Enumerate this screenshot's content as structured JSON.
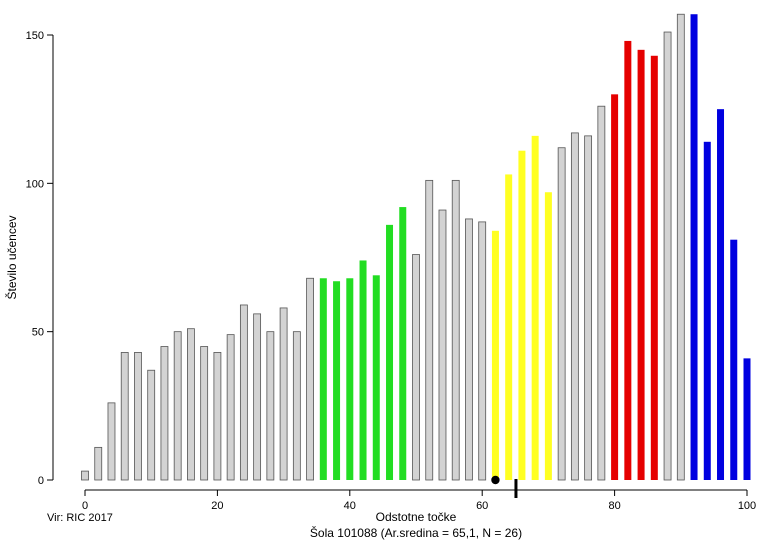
{
  "chart_data": {
    "type": "bar",
    "xlabel": "Odstotne točke",
    "ylabel": "Število učencev",
    "source": "Vir: RIC 2017",
    "caption": "Šola 101088 (Ar.sredina = 65,1, N = 26)",
    "xlim": [
      0,
      100
    ],
    "ylim": [
      0,
      157
    ],
    "x_ticks": [
      0,
      20,
      40,
      60,
      80,
      100
    ],
    "y_ticks": [
      0,
      50,
      100,
      150
    ],
    "x": [
      0,
      2,
      4,
      6,
      8,
      10,
      12,
      14,
      16,
      18,
      20,
      22,
      24,
      26,
      28,
      30,
      32,
      34,
      36,
      38,
      40,
      42,
      44,
      46,
      48,
      50,
      52,
      54,
      56,
      58,
      60,
      62,
      64,
      66,
      68,
      70,
      72,
      74,
      76,
      78,
      80,
      82,
      84,
      86,
      88,
      90,
      92,
      94,
      96,
      98,
      100
    ],
    "values": [
      3,
      11,
      26,
      43,
      43,
      37,
      45,
      50,
      51,
      45,
      43,
      49,
      59,
      56,
      50,
      58,
      50,
      68,
      68,
      67,
      68,
      74,
      69,
      86,
      92,
      76,
      101,
      91,
      101,
      88,
      87,
      84,
      103,
      111,
      116,
      97,
      112,
      117,
      116,
      126,
      130,
      148,
      145,
      143,
      151,
      157,
      157,
      114,
      125,
      81,
      41
    ],
    "bar_groups": [
      "gray",
      "gray",
      "gray",
      "gray",
      "gray",
      "gray",
      "gray",
      "gray",
      "gray",
      "gray",
      "gray",
      "gray",
      "gray",
      "gray",
      "gray",
      "gray",
      "gray",
      "gray",
      "green",
      "green",
      "green",
      "green",
      "green",
      "green",
      "green",
      "gray",
      "gray",
      "gray",
      "gray",
      "gray",
      "gray",
      "yellow",
      "yellow",
      "yellow",
      "yellow",
      "yellow",
      "gray",
      "gray",
      "gray",
      "gray",
      "red",
      "red",
      "red",
      "red",
      "gray",
      "gray",
      "blue",
      "blue",
      "blue",
      "blue",
      "blue"
    ],
    "colors": {
      "gray": "#d3d3d3",
      "green": "#22dd22",
      "yellow": "#ffff22",
      "red": "#e50000",
      "blue": "#0000e0"
    },
    "school_marker": {
      "x": 62,
      "shape": "dot",
      "color": "#000000"
    },
    "mean_marker": {
      "x": 65.1,
      "shape": "tick",
      "color": "#000000"
    },
    "grid": false,
    "legend": "none"
  }
}
